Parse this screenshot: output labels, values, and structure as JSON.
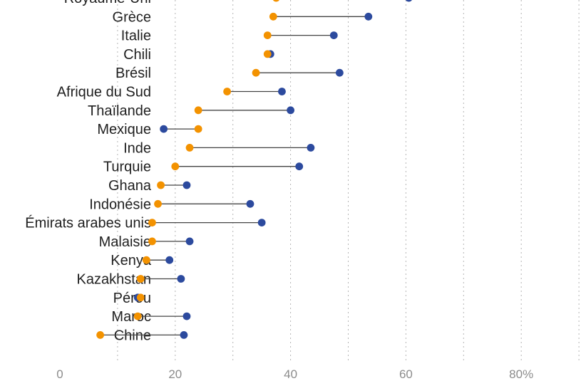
{
  "chart_data": {
    "type": "dot-plot",
    "title": "",
    "xlabel": "",
    "ylabel": "",
    "xlim": [
      0,
      90
    ],
    "xticks": [
      {
        "value": 0,
        "label": "0"
      },
      {
        "value": 20,
        "label": "20"
      },
      {
        "value": 40,
        "label": "40"
      },
      {
        "value": 60,
        "label": "60"
      },
      {
        "value": 80,
        "label": "80%"
      }
    ],
    "gridlines": [
      10,
      20,
      30,
      40,
      50,
      60,
      70,
      80,
      90
    ],
    "series": [
      {
        "name": "orange",
        "color": "#f39200"
      },
      {
        "name": "blue",
        "color": "#2c4a9e"
      }
    ],
    "rows": [
      {
        "label": "Royaume-Uni",
        "orange": 37.5,
        "blue": 60.5
      },
      {
        "label": "Grèce",
        "orange": 37.0,
        "blue": 53.5
      },
      {
        "label": "Italie",
        "orange": 36.0,
        "blue": 47.5
      },
      {
        "label": "Chili",
        "orange": 36.0,
        "blue": 36.5
      },
      {
        "label": "Brésil",
        "orange": 34.0,
        "blue": 48.5
      },
      {
        "label": "Afrique du Sud",
        "orange": 29.0,
        "blue": 38.5
      },
      {
        "label": "Thaïlande",
        "orange": 24.0,
        "blue": 40.0
      },
      {
        "label": "Mexique",
        "orange": 24.0,
        "blue": 18.0
      },
      {
        "label": "Inde",
        "orange": 22.5,
        "blue": 43.5
      },
      {
        "label": "Turquie",
        "orange": 20.0,
        "blue": 41.5
      },
      {
        "label": "Ghana",
        "orange": 17.5,
        "blue": 22.0
      },
      {
        "label": "Indonésie",
        "orange": 17.0,
        "blue": 33.0
      },
      {
        "label": "Émirats arabes unis",
        "orange": 16.0,
        "blue": 35.0
      },
      {
        "label": "Malaisie",
        "orange": 16.0,
        "blue": 22.5
      },
      {
        "label": "Kenya",
        "orange": 15.0,
        "blue": 19.0
      },
      {
        "label": "Kazakhstan",
        "orange": 14.0,
        "blue": 21.0
      },
      {
        "label": "Pérou",
        "orange": 14.0,
        "blue": 13.5
      },
      {
        "label": "Maroc",
        "orange": 13.5,
        "blue": 22.0
      },
      {
        "label": "Chine",
        "orange": 7.0,
        "blue": 21.5
      }
    ]
  }
}
